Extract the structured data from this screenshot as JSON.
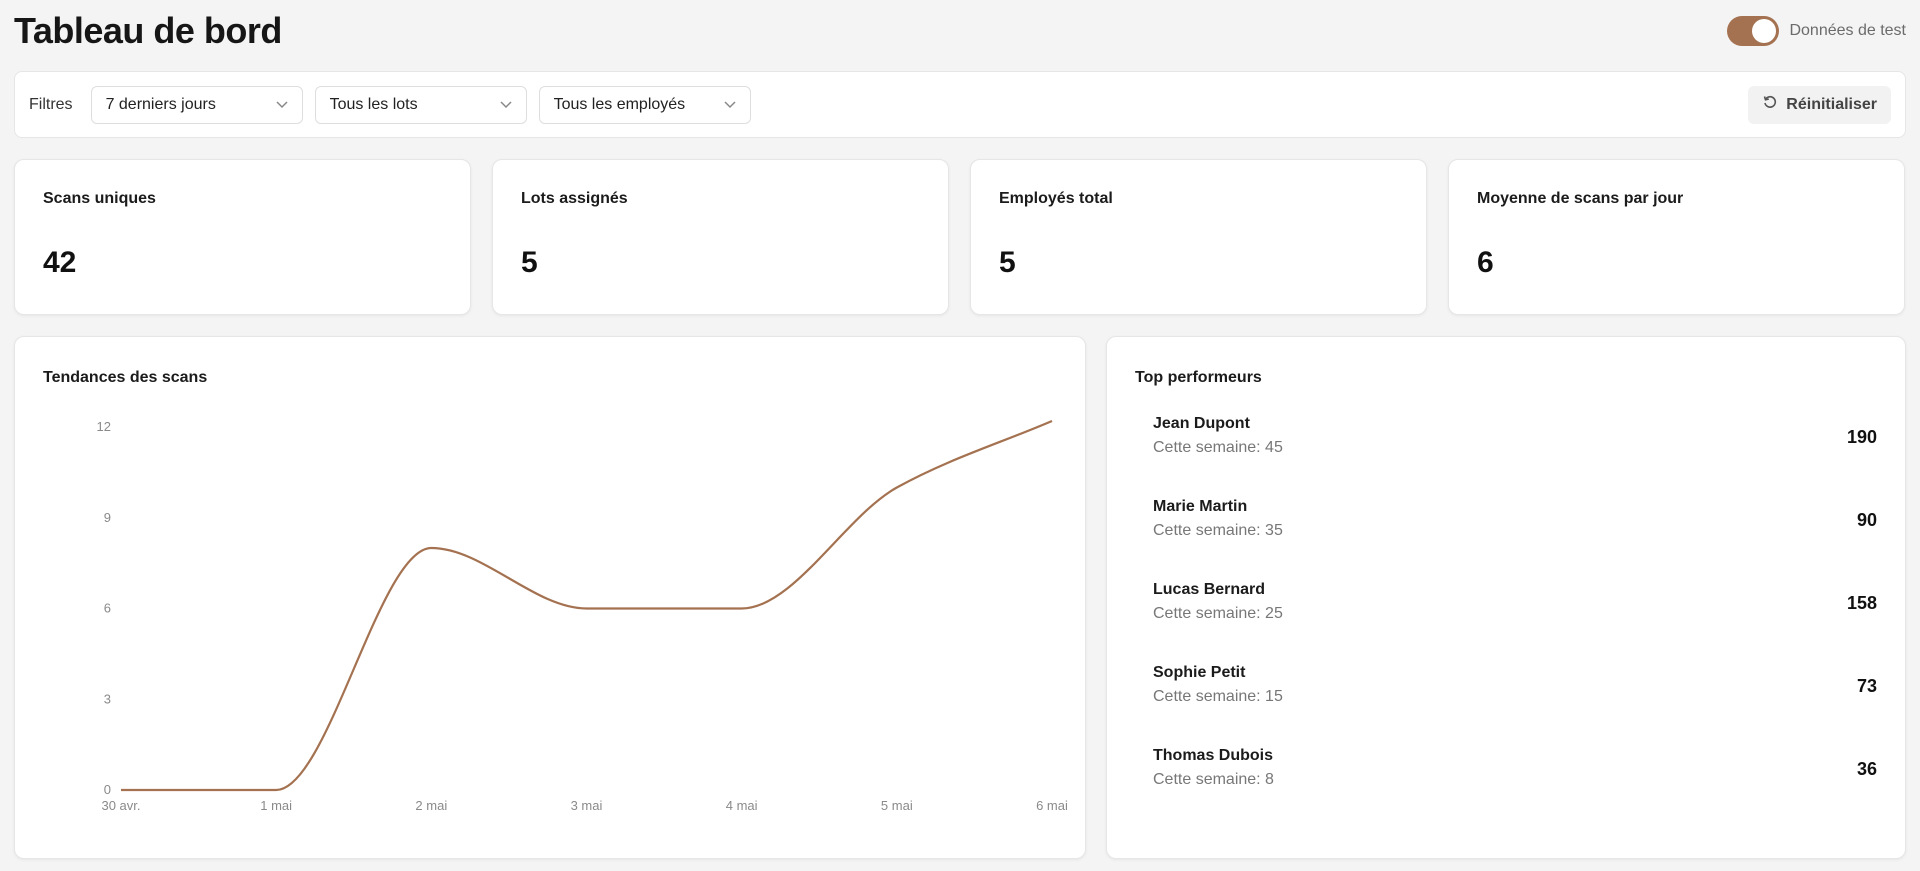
{
  "header": {
    "title": "Tableau de bord",
    "test_toggle_label": "Données de test",
    "test_toggle_on": true
  },
  "filters": {
    "label": "Filtres",
    "period": "7 derniers jours",
    "lots": "Tous les lots",
    "employees": "Tous les employés",
    "reset_label": "Réinitialiser"
  },
  "stats": [
    {
      "label": "Scans uniques",
      "value": "42"
    },
    {
      "label": "Lots assignés",
      "value": "5"
    },
    {
      "label": "Employés total",
      "value": "5"
    },
    {
      "label": "Moyenne de scans par jour",
      "value": "6"
    }
  ],
  "trend_panel": {
    "title": "Tendances des scans"
  },
  "chart_data": {
    "type": "line",
    "title": "Tendances des scans",
    "categories": [
      "30 avr.",
      "1 mai",
      "2 mai",
      "3 mai",
      "4 mai",
      "5 mai",
      "6 mai"
    ],
    "series": [
      {
        "values": [
          0,
          0,
          8,
          6,
          6,
          10,
          12.2
        ]
      }
    ],
    "yticks": [
      0,
      3,
      6,
      9,
      12
    ],
    "ylim": [
      0,
      12
    ],
    "grid": false,
    "line_color": "#a47250"
  },
  "performers_panel": {
    "title": "Top performeurs",
    "items": [
      {
        "name": "Jean Dupont",
        "week": "Cette semaine: 45",
        "total": "190"
      },
      {
        "name": "Marie Martin",
        "week": "Cette semaine: 35",
        "total": "90"
      },
      {
        "name": "Lucas Bernard",
        "week": "Cette semaine: 25",
        "total": "158"
      },
      {
        "name": "Sophie Petit",
        "week": "Cette semaine: 15",
        "total": "73"
      },
      {
        "name": "Thomas Dubois",
        "week": "Cette semaine: 8",
        "total": "36"
      }
    ]
  },
  "colors": {
    "accent": "#a47250",
    "background": "#f4f4f4"
  }
}
